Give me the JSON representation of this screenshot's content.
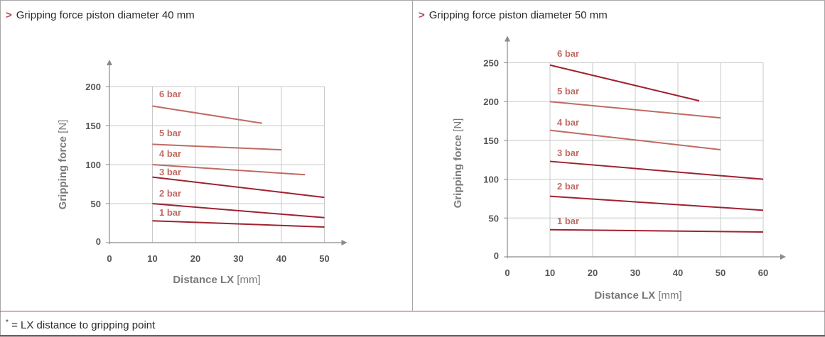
{
  "footnote": {
    "star": "*",
    "text": " = LX distance to gripping point"
  },
  "colors": {
    "accent": "#b3434a",
    "line_dark": "#9e2230",
    "line_light": "#c06a63",
    "grid": "#c8c8c8",
    "axis": "#8a8a8a",
    "label_gray": "#7a7a7a"
  },
  "chart_data": [
    {
      "type": "line",
      "title_marker": ">",
      "title": "Gripping force piston diameter 40 mm",
      "xlabel_bold": "Distance LX",
      "xlabel_unit": "[mm]",
      "ylabel_bold": "Gripping force",
      "ylabel_unit": "[N]",
      "xlim": [
        0,
        50
      ],
      "ylim": [
        0,
        200
      ],
      "xticks": [
        0,
        10,
        20,
        30,
        40,
        50
      ],
      "yticks": [
        0,
        50,
        100,
        150,
        200
      ],
      "grid": true,
      "series": [
        {
          "name": "6 bar",
          "x": [
            10,
            35.5
          ],
          "y": [
            175,
            153
          ],
          "shade": "light"
        },
        {
          "name": "5 bar",
          "x": [
            10,
            40
          ],
          "y": [
            126,
            119
          ],
          "shade": "light"
        },
        {
          "name": "4 bar",
          "x": [
            10,
            45.5
          ],
          "y": [
            100,
            87
          ],
          "shade": "light"
        },
        {
          "name": "3 bar",
          "x": [
            10,
            50
          ],
          "y": [
            84,
            58
          ],
          "shade": "dark"
        },
        {
          "name": "2 bar",
          "x": [
            10,
            50
          ],
          "y": [
            50,
            32
          ],
          "shade": "dark"
        },
        {
          "name": "1 bar",
          "x": [
            10,
            50
          ],
          "y": [
            28,
            20
          ],
          "shade": "dark"
        }
      ]
    },
    {
      "type": "line",
      "title_marker": ">",
      "title": "Gripping force piston diameter 50 mm",
      "xlabel_bold": "Distance LX",
      "xlabel_unit": "[mm]",
      "ylabel_bold": "Gripping force",
      "ylabel_unit": "[N]",
      "xlim": [
        0,
        60
      ],
      "ylim": [
        0,
        250
      ],
      "xticks": [
        0,
        10,
        20,
        30,
        40,
        50,
        60
      ],
      "yticks": [
        0,
        50,
        100,
        150,
        200,
        250
      ],
      "grid": true,
      "series": [
        {
          "name": "6 bar",
          "x": [
            10,
            45
          ],
          "y": [
            247,
            201
          ],
          "shade": "dark"
        },
        {
          "name": "5 bar",
          "x": [
            10,
            50
          ],
          "y": [
            200,
            179
          ],
          "shade": "light"
        },
        {
          "name": "4 bar",
          "x": [
            10,
            50
          ],
          "y": [
            163,
            138
          ],
          "shade": "light"
        },
        {
          "name": "3 bar",
          "x": [
            10,
            60
          ],
          "y": [
            123,
            100
          ],
          "shade": "dark"
        },
        {
          "name": "2 bar",
          "x": [
            10,
            60
          ],
          "y": [
            78,
            60
          ],
          "shade": "dark"
        },
        {
          "name": "1 bar",
          "x": [
            10,
            60
          ],
          "y": [
            35,
            32
          ],
          "shade": "dark"
        }
      ]
    }
  ]
}
